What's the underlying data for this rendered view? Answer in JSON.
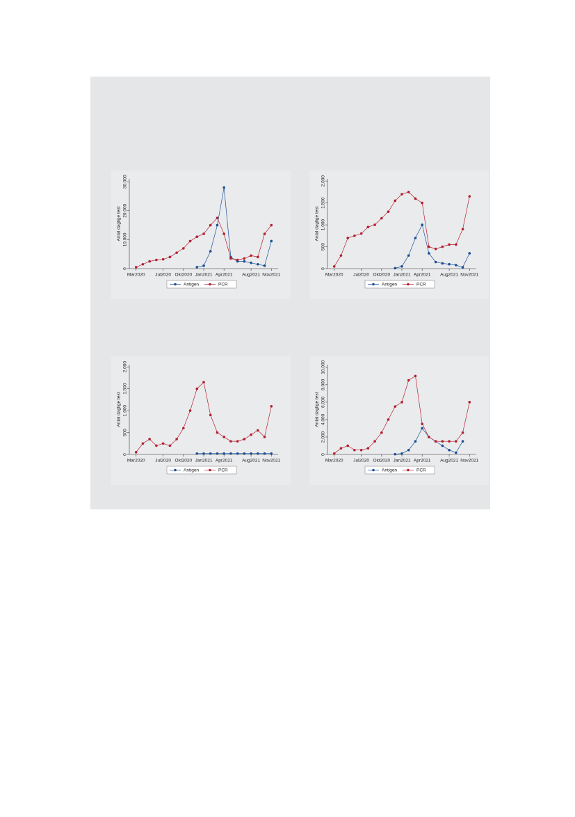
{
  "chart_data": [
    {
      "type": "line",
      "ylabel": "Antal daglige test",
      "x": [
        "2020-03",
        "2020-04",
        "2020-05",
        "2020-06",
        "2020-07",
        "2020-08",
        "2020-09",
        "2020-10",
        "2020-11",
        "2020-12",
        "2021-01",
        "2021-02",
        "2021-03",
        "2021-04",
        "2021-05",
        "2021-06",
        "2021-07",
        "2021-08",
        "2021-09",
        "2021-10",
        "2021-11"
      ],
      "xlim": [
        "2020-02",
        "2021-12"
      ],
      "xticks": [
        {
          "value": "2020-03",
          "label": "Mar2020"
        },
        {
          "value": "2020-07",
          "label": "Jul2020"
        },
        {
          "value": "2020-10",
          "label": "Okt2020"
        },
        {
          "value": "2021-01",
          "label": "Jan2021"
        },
        {
          "value": "2021-04",
          "label": "Apr2021"
        },
        {
          "value": "2021-08",
          "label": "Aug2021"
        },
        {
          "value": "2021-11",
          "label": "Nov2021"
        }
      ],
      "ylim": [
        0,
        31000
      ],
      "yticks": [
        0,
        {
          "value": 10000,
          "label": "10.000"
        },
        {
          "value": 20000,
          "label": "20.000"
        },
        {
          "value": 30000,
          "label": "30.000"
        }
      ],
      "series": [
        {
          "name": "Antigen",
          "color": "#1a4f96",
          "values": [
            null,
            null,
            null,
            null,
            null,
            null,
            null,
            null,
            null,
            500,
            1000,
            6000,
            15000,
            28000,
            4000,
            2500,
            2500,
            2000,
            1500,
            1000,
            9500
          ]
        },
        {
          "name": "PCR",
          "color": "#b3202f",
          "values": [
            500,
            1500,
            2500,
            3000,
            3200,
            4000,
            5500,
            7000,
            9500,
            11000,
            12000,
            15000,
            17500,
            12000,
            3500,
            3000,
            3500,
            4500,
            4000,
            12000,
            15000
          ]
        }
      ]
    },
    {
      "type": "line",
      "ylabel": "Antal daglige test",
      "x": [
        "2020-03",
        "2020-04",
        "2020-05",
        "2020-06",
        "2020-07",
        "2020-08",
        "2020-09",
        "2020-10",
        "2020-11",
        "2020-12",
        "2021-01",
        "2021-02",
        "2021-03",
        "2021-04",
        "2021-05",
        "2021-06",
        "2021-07",
        "2021-08",
        "2021-09",
        "2021-10",
        "2021-11"
      ],
      "xlim": [
        "2020-02",
        "2021-12"
      ],
      "xticks": [
        {
          "value": "2020-03",
          "label": "Mar2020"
        },
        {
          "value": "2020-07",
          "label": "Jul2020"
        },
        {
          "value": "2020-10",
          "label": "Okt2020"
        },
        {
          "value": "2021-01",
          "label": "Jan2021"
        },
        {
          "value": "2021-04",
          "label": "Apr2021"
        },
        {
          "value": "2021-08",
          "label": "Aug2021"
        },
        {
          "value": "2021-11",
          "label": "Nov2021"
        }
      ],
      "ylim": [
        0,
        2050
      ],
      "yticks": [
        0,
        500,
        {
          "value": 1000,
          "label": "1.000"
        },
        {
          "value": 1500,
          "label": "1.500"
        },
        {
          "value": 2000,
          "label": "2.000"
        }
      ],
      "series": [
        {
          "name": "Antigen",
          "color": "#1a4f96",
          "values": [
            null,
            null,
            null,
            null,
            null,
            null,
            null,
            null,
            null,
            10,
            50,
            300,
            700,
            1000,
            350,
            150,
            120,
            100,
            80,
            30,
            350
          ]
        },
        {
          "name": "PCR",
          "color": "#b3202f",
          "values": [
            50,
            300,
            700,
            750,
            800,
            950,
            1000,
            1150,
            1300,
            1550,
            1700,
            1750,
            1600,
            1500,
            500,
            450,
            500,
            550,
            550,
            900,
            1650
          ]
        }
      ]
    },
    {
      "type": "line",
      "ylabel": "Antal daglige test",
      "x": [
        "2020-03",
        "2020-04",
        "2020-05",
        "2020-06",
        "2020-07",
        "2020-08",
        "2020-09",
        "2020-10",
        "2020-11",
        "2020-12",
        "2021-01",
        "2021-02",
        "2021-03",
        "2021-04",
        "2021-05",
        "2021-06",
        "2021-07",
        "2021-08",
        "2021-09",
        "2021-10",
        "2021-11"
      ],
      "xlim": [
        "2020-02",
        "2021-12"
      ],
      "xticks": [
        {
          "value": "2020-03",
          "label": "Mar2020"
        },
        {
          "value": "2020-07",
          "label": "Jul2020"
        },
        {
          "value": "2020-10",
          "label": "Okt2020"
        },
        {
          "value": "2021-01",
          "label": "Jan2021"
        },
        {
          "value": "2021-04",
          "label": "Apr2021"
        },
        {
          "value": "2021-08",
          "label": "Aug2021"
        },
        {
          "value": "2021-11",
          "label": "Nov2021"
        }
      ],
      "ylim": [
        0,
        2050
      ],
      "yticks": [
        0,
        500,
        {
          "value": 1000,
          "label": "1.000"
        },
        {
          "value": 1500,
          "label": "1.500"
        },
        {
          "value": 2000,
          "label": "2.000"
        }
      ],
      "series": [
        {
          "name": "Antigen",
          "color": "#1a4f96",
          "values": [
            null,
            null,
            null,
            null,
            null,
            null,
            null,
            null,
            null,
            20,
            20,
            20,
            20,
            20,
            20,
            20,
            20,
            20,
            20,
            20,
            20
          ]
        },
        {
          "name": "PCR",
          "color": "#b3202f",
          "values": [
            50,
            250,
            350,
            200,
            250,
            200,
            350,
            600,
            1000,
            1500,
            1650,
            900,
            500,
            400,
            300,
            300,
            350,
            450,
            550,
            400,
            1100
          ]
        }
      ]
    },
    {
      "type": "line",
      "ylabel": "Antal daglige test",
      "x": [
        "2020-03",
        "2020-04",
        "2020-05",
        "2020-06",
        "2020-07",
        "2020-08",
        "2020-09",
        "2020-10",
        "2020-11",
        "2020-12",
        "2021-01",
        "2021-02",
        "2021-03",
        "2021-04",
        "2021-05",
        "2021-06",
        "2021-07",
        "2021-08",
        "2021-09",
        "2021-10",
        "2021-11"
      ],
      "xlim": [
        "2020-02",
        "2021-12"
      ],
      "xticks": [
        {
          "value": "2020-03",
          "label": "Mar2020"
        },
        {
          "value": "2020-07",
          "label": "Jul2020"
        },
        {
          "value": "2020-10",
          "label": "Okt2020"
        },
        {
          "value": "2021-01",
          "label": "Jan2021"
        },
        {
          "value": "2021-04",
          "label": "Apr2021"
        },
        {
          "value": "2021-08",
          "label": "Aug2021"
        },
        {
          "value": "2021-11",
          "label": "Nov2021"
        }
      ],
      "ylim": [
        0,
        10300
      ],
      "yticks": [
        0,
        {
          "value": 2000,
          "label": "2.000"
        },
        {
          "value": 4000,
          "label": "4.000"
        },
        {
          "value": 6000,
          "label": "6.000"
        },
        {
          "value": 8000,
          "label": "8.000"
        },
        {
          "value": 10000,
          "label": "10.000"
        }
      ],
      "series": [
        {
          "name": "Antigen",
          "color": "#1a4f96",
          "values": [
            null,
            null,
            null,
            null,
            null,
            null,
            null,
            null,
            null,
            30,
            100,
            500,
            1500,
            3000,
            2000,
            1500,
            1000,
            500,
            200,
            1500,
            null
          ]
        },
        {
          "name": "PCR",
          "color": "#b3202f",
          "values": [
            100,
            700,
            1000,
            500,
            500,
            700,
            1500,
            2500,
            4000,
            5500,
            6000,
            8500,
            9000,
            3500,
            2000,
            1500,
            1500,
            1500,
            1500,
            2500,
            6000
          ]
        }
      ]
    }
  ]
}
